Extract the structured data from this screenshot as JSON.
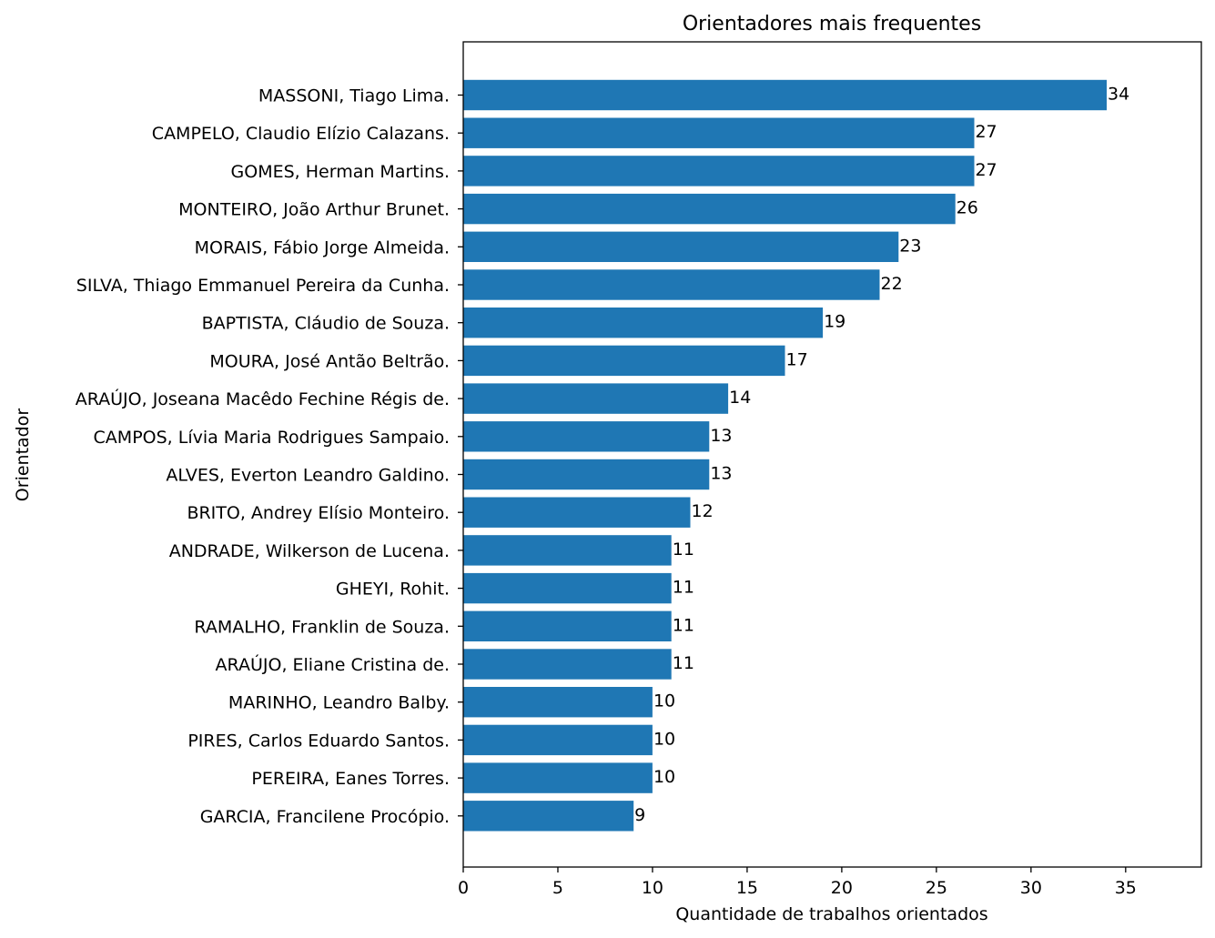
{
  "chart_data": {
    "type": "bar",
    "orientation": "horizontal",
    "title": "Orientadores mais frequentes",
    "xlabel": "Quantidade de trabalhos orientados",
    "ylabel": "Orientador",
    "xlim": [
      0,
      39
    ],
    "x_ticks": [
      0,
      5,
      10,
      15,
      20,
      25,
      30,
      35
    ],
    "bar_color": "#1f77b4",
    "grid": false,
    "categories": [
      "MASSONI, Tiago Lima.",
      "CAMPELO, Claudio Elízio Calazans.",
      "GOMES, Herman Martins.",
      "MONTEIRO, João Arthur Brunet.",
      "MORAIS, Fábio Jorge Almeida.",
      "SILVA, Thiago Emmanuel Pereira da Cunha.",
      "BAPTISTA, Cláudio de Souza.",
      "MOURA, José Antão Beltrão.",
      "ARAÚJO, Joseana Macêdo Fechine Régis de.",
      "CAMPOS, Lívia Maria Rodrigues Sampaio.",
      "ALVES, Everton Leandro Galdino.",
      "BRITO, Andrey Elísio Monteiro.",
      "ANDRADE, Wilkerson de Lucena.",
      "GHEYI, Rohit.",
      "RAMALHO, Franklin de Souza.",
      "ARAÚJO, Eliane Cristina de.",
      "MARINHO, Leandro Balby.",
      "PIRES, Carlos Eduardo Santos.",
      "PEREIRA, Eanes Torres.",
      "GARCIA, Francilene Procópio."
    ],
    "values": [
      34,
      27,
      27,
      26,
      23,
      22,
      19,
      17,
      14,
      13,
      13,
      12,
      11,
      11,
      11,
      11,
      10,
      10,
      10,
      9
    ]
  }
}
